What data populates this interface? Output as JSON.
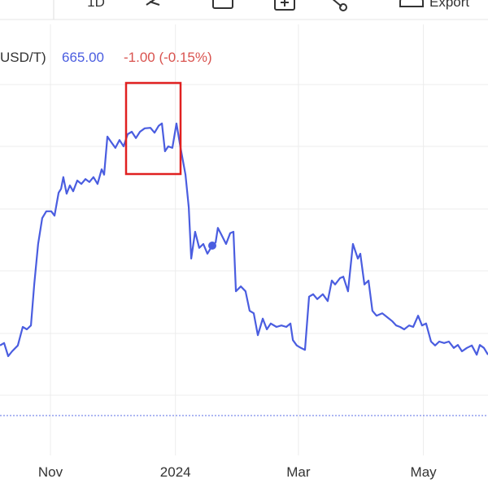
{
  "toolbar": {
    "interval": "1D",
    "export": "Export"
  },
  "chart_data": {
    "type": "line",
    "header": {
      "symbol": "USD/T)",
      "last": "665.00",
      "change": "-1.00 (-0.15%)"
    },
    "x": [
      -24.6,
      -22.6,
      -20.6,
      -18.7,
      -15.9,
      -13.5,
      -11.5,
      -9.5,
      -7.9,
      -6,
      -4,
      -2,
      0.4,
      2,
      4,
      5.2,
      6.3,
      7.9,
      9.5,
      11.1,
      13.1,
      15.1,
      17.1,
      19,
      21,
      23,
      25,
      26.2,
      27.8,
      29.8,
      31.7,
      33.7,
      35.7,
      37.7,
      39.7,
      41.7,
      43.7,
      46,
      48.8,
      50.8,
      52.8,
      54.4,
      55.9,
      57.5,
      59.5,
      61.5,
      63.5,
      65.9,
      67.5,
      68.7,
      70.6,
      72.6,
      74.6,
      76.6,
      79,
      80.6,
      81.7,
      83.3,
      85.7,
      87.7,
      89.3,
      90.5,
      92.9,
      95.2,
      97.2,
      99.2,
      101.2,
      102.4,
      103.6,
      105.6,
      107.5,
      110.3,
      112.7,
      115.1,
      117.1,
      118.3,
      120.2,
      122.2,
      124.2,
      126.2,
      128.2,
      130.2,
      132.9,
      135.3,
      137.3,
      138.9,
      141.3,
      142.9,
      145.2,
      147.6,
      150,
      151.2,
      153.2,
      155.2,
      157.1,
      159.1,
      161.9,
      164.3,
      166.7,
      168.7,
      170.6,
      172.6,
      175,
      177,
      179.4,
      181.3,
      183.3,
      185.7,
      187.7,
      189.7,
      192.1,
      194.4,
      196.8,
      198.8,
      200.8,
      203.2,
      205.6,
      208,
      209.5,
      211.5,
      213.5
    ],
    "series": [
      {
        "name": "USD/T",
        "color": "#4a5de0",
        "values": [
          29.2,
          29.7,
          27,
          28,
          29.2,
          33,
          32.5,
          33.3,
          41.7,
          50,
          55.3,
          56.7,
          56.7,
          55.8,
          60.5,
          61.3,
          63.7,
          60.3,
          62,
          60.8,
          63,
          62.3,
          63.3,
          62.7,
          63.7,
          62.3,
          65.3,
          64.2,
          72,
          70.8,
          69.7,
          71.3,
          70,
          72.5,
          73,
          71.7,
          73,
          73.7,
          73.8,
          72.8,
          74.2,
          74.7,
          69,
          70,
          69.7,
          74.7,
          69.7,
          64.2,
          57.5,
          47,
          52.5,
          49.2,
          50,
          48,
          49.7,
          50.3,
          53.3,
          52,
          50,
          52.2,
          52.5,
          40.3,
          41.3,
          40.3,
          36.3,
          35.8,
          31.3,
          33,
          34.7,
          32.5,
          33.7,
          33,
          33.3,
          33,
          33.7,
          30.3,
          29.2,
          28.7,
          28.3,
          39.2,
          39.7,
          38.7,
          39.7,
          38.3,
          42.5,
          41.7,
          43,
          43.3,
          40.3,
          50,
          47,
          48,
          41.7,
          42.5,
          36.3,
          35.3,
          35.8,
          35,
          34.2,
          33.3,
          33,
          32.5,
          33.3,
          33,
          35.3,
          33.3,
          33.7,
          30,
          29.2,
          30,
          29.7,
          30,
          28.7,
          29.3,
          28,
          28.7,
          29.2,
          27.3,
          29.3,
          28.7,
          27.3
        ]
      }
    ],
    "xlim": [
      -24.6,
      213.5
    ],
    "ylim": [
      0,
      100
    ],
    "xticks": [
      {
        "value": 0,
        "label": "Nov"
      },
      {
        "value": 61,
        "label": "2024"
      },
      {
        "value": 121,
        "label": "Mar"
      },
      {
        "value": 182,
        "label": "May"
      }
    ]
  }
}
